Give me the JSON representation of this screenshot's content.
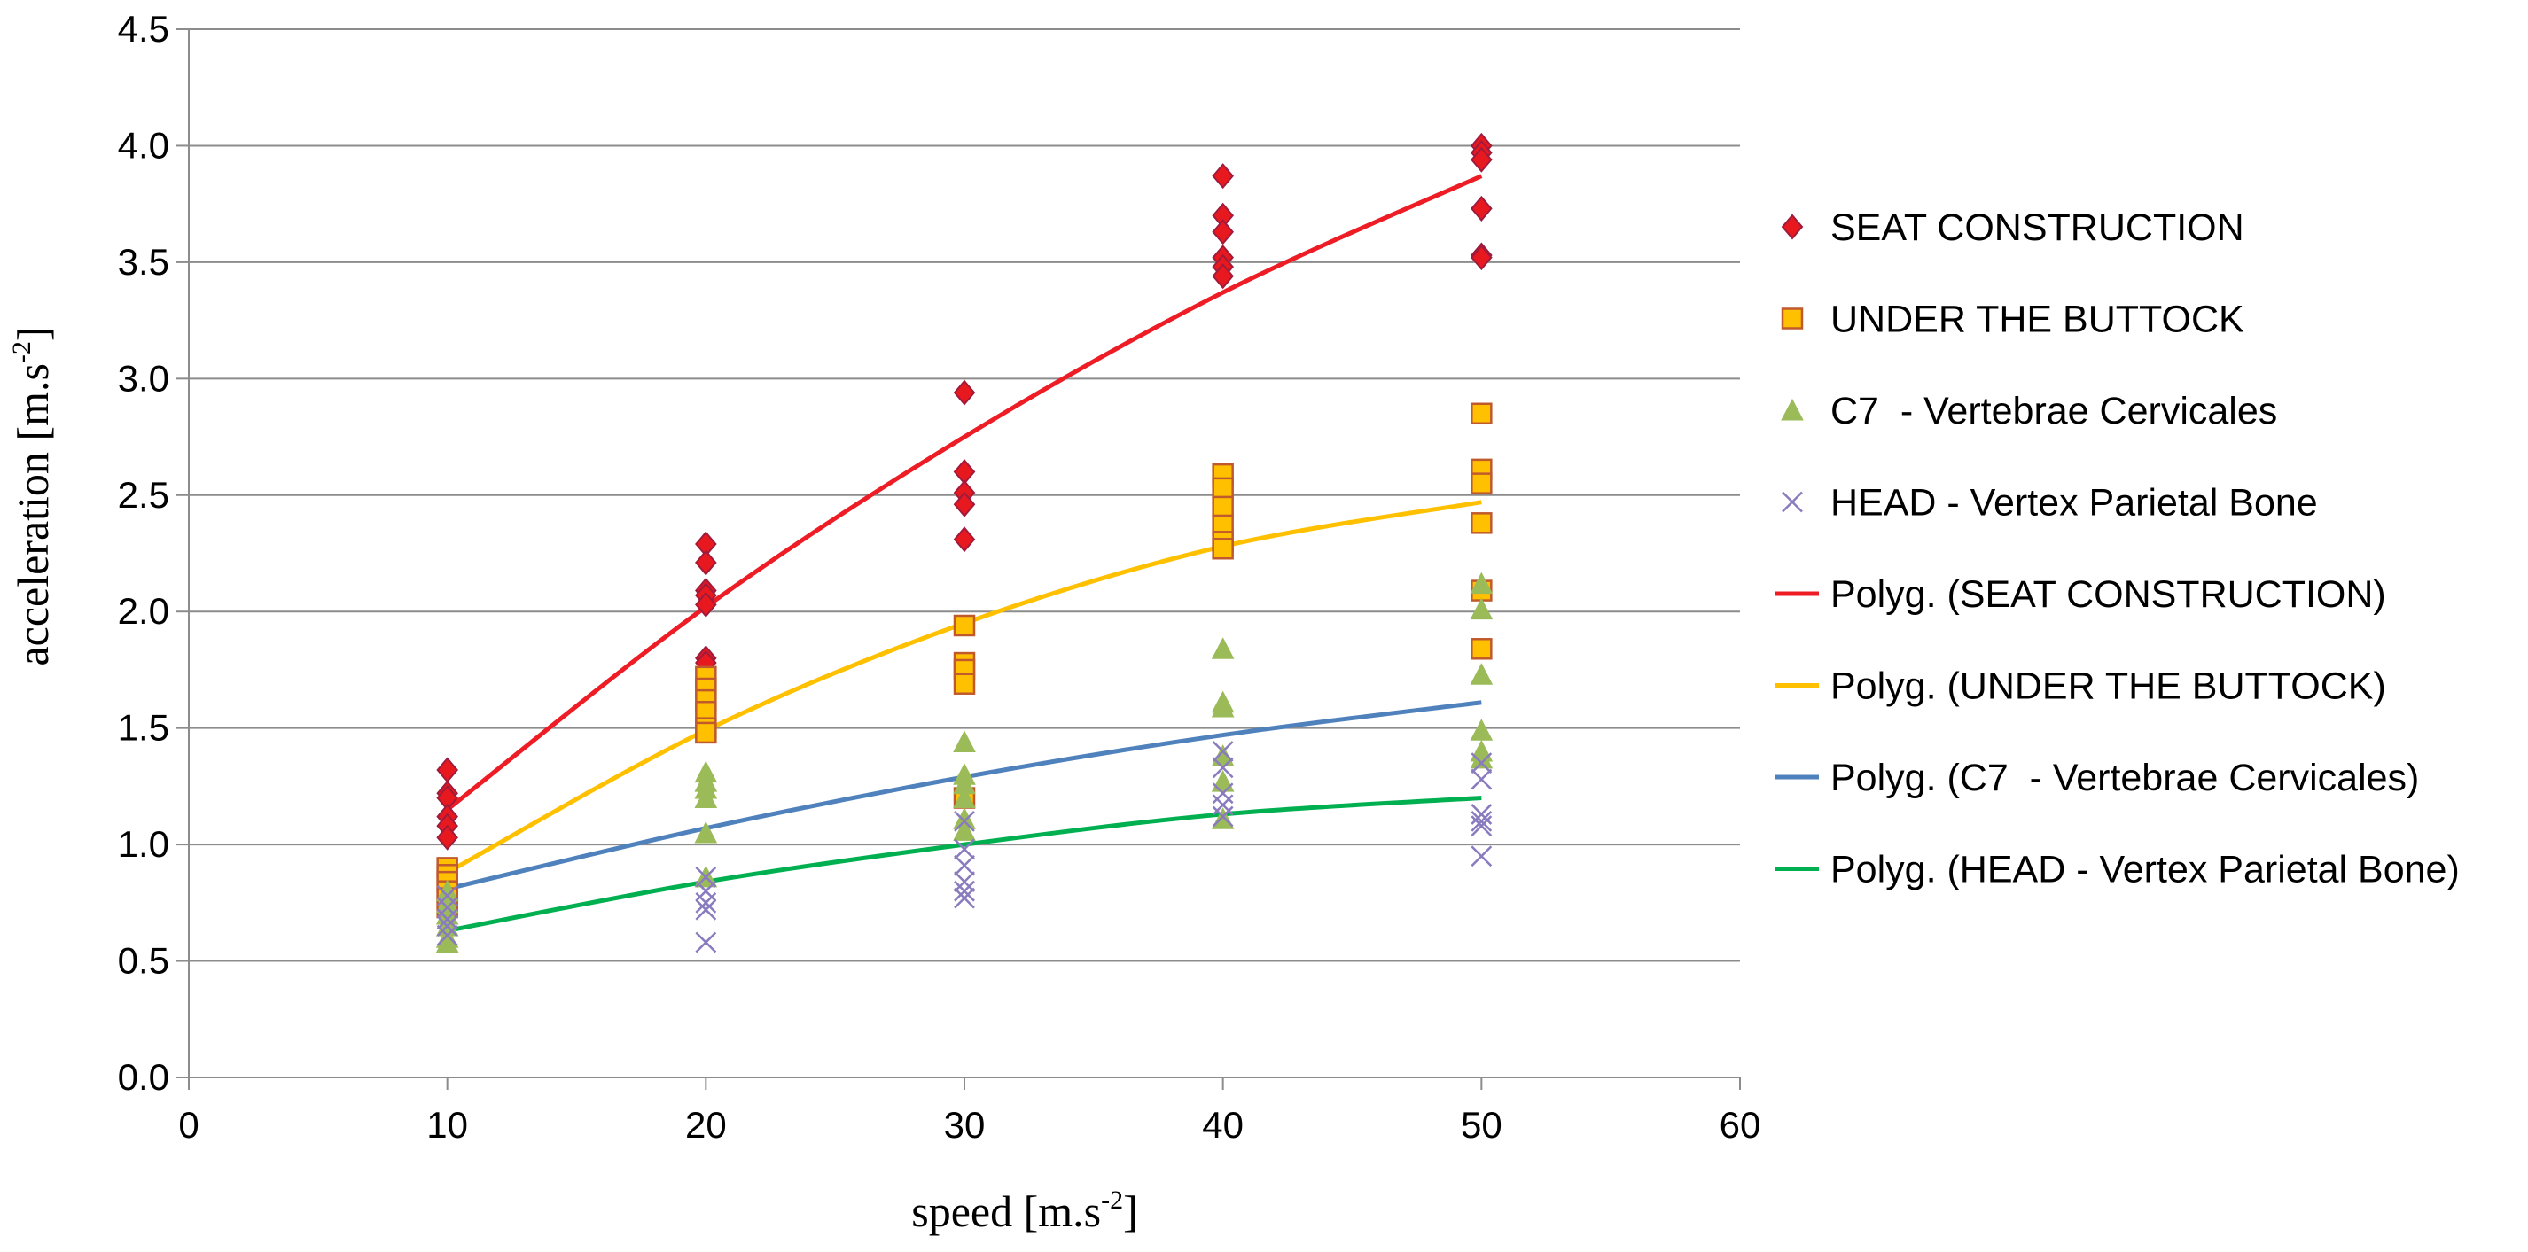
{
  "chart_data": {
    "type": "scatter",
    "xlabel": {
      "base": "speed [m.s",
      "sup": "-2",
      "close": "]"
    },
    "ylabel": {
      "base": "acceleration [m.s",
      "sup": "-2",
      "close": "]"
    },
    "xlim": [
      0,
      60
    ],
    "ylim": [
      0,
      4.5
    ],
    "x_ticks": [
      0,
      10,
      20,
      30,
      40,
      50,
      60
    ],
    "x_tick_labels": [
      "0",
      "10",
      "20",
      "30",
      "40",
      "50",
      "60"
    ],
    "y_ticks": [
      0,
      0.5,
      1,
      1.5,
      2,
      2.5,
      3,
      3.5,
      4,
      4.5
    ],
    "y_tick_labels": [
      "0.0",
      "0.5",
      "1.0",
      "1.5",
      "2.0",
      "2.5",
      "3.0",
      "3.5",
      "4.0",
      "4.5"
    ],
    "grid": "horizontal",
    "legend_position": "right",
    "series": [
      {
        "name": "SEAT CONSTRUCTION",
        "marker": "diamond",
        "color": "#e8191e",
        "stroke": "#a01a3c",
        "points": [
          [
            10,
            1.32
          ],
          [
            10,
            1.22
          ],
          [
            10,
            1.2
          ],
          [
            10,
            1.12
          ],
          [
            10,
            1.08
          ],
          [
            10,
            1.03
          ],
          [
            20,
            2.29
          ],
          [
            20,
            2.21
          ],
          [
            20,
            2.09
          ],
          [
            20,
            2.07
          ],
          [
            20,
            2.03
          ],
          [
            20,
            1.8
          ],
          [
            20,
            1.78
          ],
          [
            30,
            2.94
          ],
          [
            30,
            2.6
          ],
          [
            30,
            2.51
          ],
          [
            30,
            2.46
          ],
          [
            30,
            2.31
          ],
          [
            40,
            3.87
          ],
          [
            40,
            3.7
          ],
          [
            40,
            3.63
          ],
          [
            40,
            3.52
          ],
          [
            40,
            3.48
          ],
          [
            40,
            3.44
          ],
          [
            50,
            4.0
          ],
          [
            50,
            3.97
          ],
          [
            50,
            3.94
          ],
          [
            50,
            3.73
          ],
          [
            50,
            3.53
          ],
          [
            50,
            3.52
          ]
        ]
      },
      {
        "name": "UNDER THE BUTTOCK",
        "marker": "square",
        "color": "#ffc000",
        "stroke": "#c05a2c",
        "points": [
          [
            10,
            0.9
          ],
          [
            10,
            0.87
          ],
          [
            10,
            0.84
          ],
          [
            10,
            0.8
          ],
          [
            10,
            0.77
          ],
          [
            10,
            0.73
          ],
          [
            20,
            1.72
          ],
          [
            20,
            1.67
          ],
          [
            20,
            1.62
          ],
          [
            20,
            1.57
          ],
          [
            20,
            1.5
          ],
          [
            20,
            1.48
          ],
          [
            30,
            1.94
          ],
          [
            30,
            1.78
          ],
          [
            30,
            1.75
          ],
          [
            30,
            1.69
          ],
          [
            30,
            1.2
          ],
          [
            40,
            2.59
          ],
          [
            40,
            2.53
          ],
          [
            40,
            2.45
          ],
          [
            40,
            2.37
          ],
          [
            40,
            2.3
          ],
          [
            40,
            2.27
          ],
          [
            50,
            2.85
          ],
          [
            50,
            2.61
          ],
          [
            50,
            2.55
          ],
          [
            50,
            2.38
          ],
          [
            50,
            2.09
          ],
          [
            50,
            1.84
          ]
        ]
      },
      {
        "name": "C7  - Vertebrae Cervicales",
        "marker": "triangle",
        "color": "#9bbb59",
        "stroke": "#9bbb59",
        "points": [
          [
            10,
            0.8
          ],
          [
            10,
            0.75
          ],
          [
            10,
            0.7
          ],
          [
            10,
            0.65
          ],
          [
            10,
            0.6
          ],
          [
            10,
            0.58
          ],
          [
            20,
            1.31
          ],
          [
            20,
            1.27
          ],
          [
            20,
            1.24
          ],
          [
            20,
            1.2
          ],
          [
            20,
            1.05
          ],
          [
            20,
            0.86
          ],
          [
            30,
            1.44
          ],
          [
            30,
            1.3
          ],
          [
            30,
            1.26
          ],
          [
            30,
            1.2
          ],
          [
            30,
            1.11
          ],
          [
            30,
            1.06
          ],
          [
            40,
            1.84
          ],
          [
            40,
            1.61
          ],
          [
            40,
            1.59
          ],
          [
            40,
            1.38
          ],
          [
            40,
            1.27
          ],
          [
            40,
            1.11
          ],
          [
            50,
            2.12
          ],
          [
            50,
            2.01
          ],
          [
            50,
            1.73
          ],
          [
            50,
            1.49
          ],
          [
            50,
            1.4
          ],
          [
            50,
            1.37
          ]
        ]
      },
      {
        "name": "HEAD - Vertex Parietal Bone",
        "marker": "x",
        "color": "#8a7bbf",
        "stroke": "#8a7bbf",
        "points": [
          [
            10,
            0.78
          ],
          [
            10,
            0.73
          ],
          [
            10,
            0.68
          ],
          [
            10,
            0.65
          ],
          [
            10,
            0.61
          ],
          [
            20,
            0.86
          ],
          [
            20,
            0.8
          ],
          [
            20,
            0.75
          ],
          [
            20,
            0.72
          ],
          [
            20,
            0.58
          ],
          [
            30,
            1.1
          ],
          [
            30,
            0.98
          ],
          [
            30,
            0.91
          ],
          [
            30,
            0.84
          ],
          [
            30,
            0.8
          ],
          [
            30,
            0.77
          ],
          [
            40,
            1.4
          ],
          [
            40,
            1.33
          ],
          [
            40,
            1.22
          ],
          [
            40,
            1.17
          ],
          [
            40,
            1.12
          ],
          [
            50,
            1.35
          ],
          [
            50,
            1.28
          ],
          [
            50,
            1.13
          ],
          [
            50,
            1.1
          ],
          [
            50,
            1.08
          ],
          [
            50,
            0.95
          ]
        ]
      },
      {
        "name": "Polyg. (SEAT CONSTRUCTION)",
        "type": "trendline",
        "color": "#ee1c25",
        "points": [
          [
            10,
            1.15
          ],
          [
            20,
            2.02
          ],
          [
            30,
            2.75
          ],
          [
            40,
            3.37
          ],
          [
            50,
            3.87
          ]
        ]
      },
      {
        "name": "Polyg. (UNDER THE BUTTOCK)",
        "type": "trendline",
        "color": "#ffc000",
        "points": [
          [
            10,
            0.88
          ],
          [
            20,
            1.49
          ],
          [
            30,
            1.95
          ],
          [
            40,
            2.28
          ],
          [
            50,
            2.47
          ]
        ]
      },
      {
        "name": "Polyg. (C7  - Vertebrae Cervicales)",
        "type": "trendline",
        "color": "#4f81bd",
        "points": [
          [
            10,
            0.81
          ],
          [
            20,
            1.07
          ],
          [
            30,
            1.29
          ],
          [
            40,
            1.47
          ],
          [
            50,
            1.61
          ]
        ]
      },
      {
        "name": "Polyg. (HEAD - Vertex Parietal Bone)",
        "type": "trendline",
        "color": "#00b050",
        "points": [
          [
            10,
            0.63
          ],
          [
            20,
            0.84
          ],
          [
            30,
            1.0
          ],
          [
            40,
            1.13
          ],
          [
            50,
            1.2
          ]
        ]
      }
    ]
  }
}
